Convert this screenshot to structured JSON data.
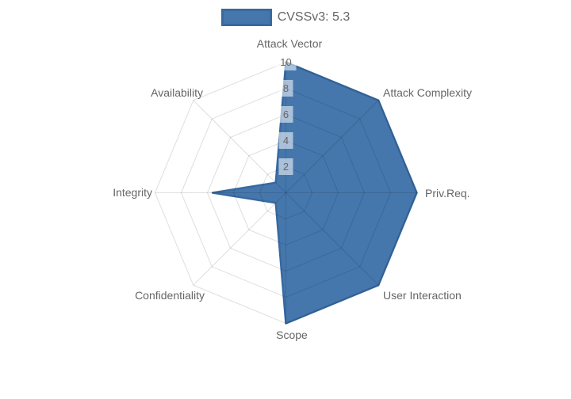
{
  "legend": {
    "label": "CVSSv3: 5.3"
  },
  "colors": {
    "series_fill": "#4577ad",
    "series_stroke": "#38699f",
    "grid_line": "rgba(0,0,0,0.13)",
    "axis_label": "#666666",
    "tick_text": "#666666",
    "tick_backdrop": "rgba(255,255,255,0.55)",
    "legend_text": "#666666",
    "background": "#ffffff"
  },
  "chart_data": {
    "type": "radar",
    "title": "",
    "categories": [
      "Attack Vector",
      "Attack Complexity",
      "Priv.Req.",
      "User Interaction",
      "Scope",
      "Confidentiality",
      "Integrity",
      "Availability"
    ],
    "series": [
      {
        "name": "CVSSv3: 5.3",
        "values": [
          10,
          10,
          10,
          10,
          10,
          1.1,
          5.6,
          1.1
        ]
      }
    ],
    "radial_ticks": [
      "2",
      "4",
      "6",
      "8",
      "10"
    ],
    "radial_range": [
      0,
      10
    ],
    "grid": true,
    "legend_position": "top"
  }
}
